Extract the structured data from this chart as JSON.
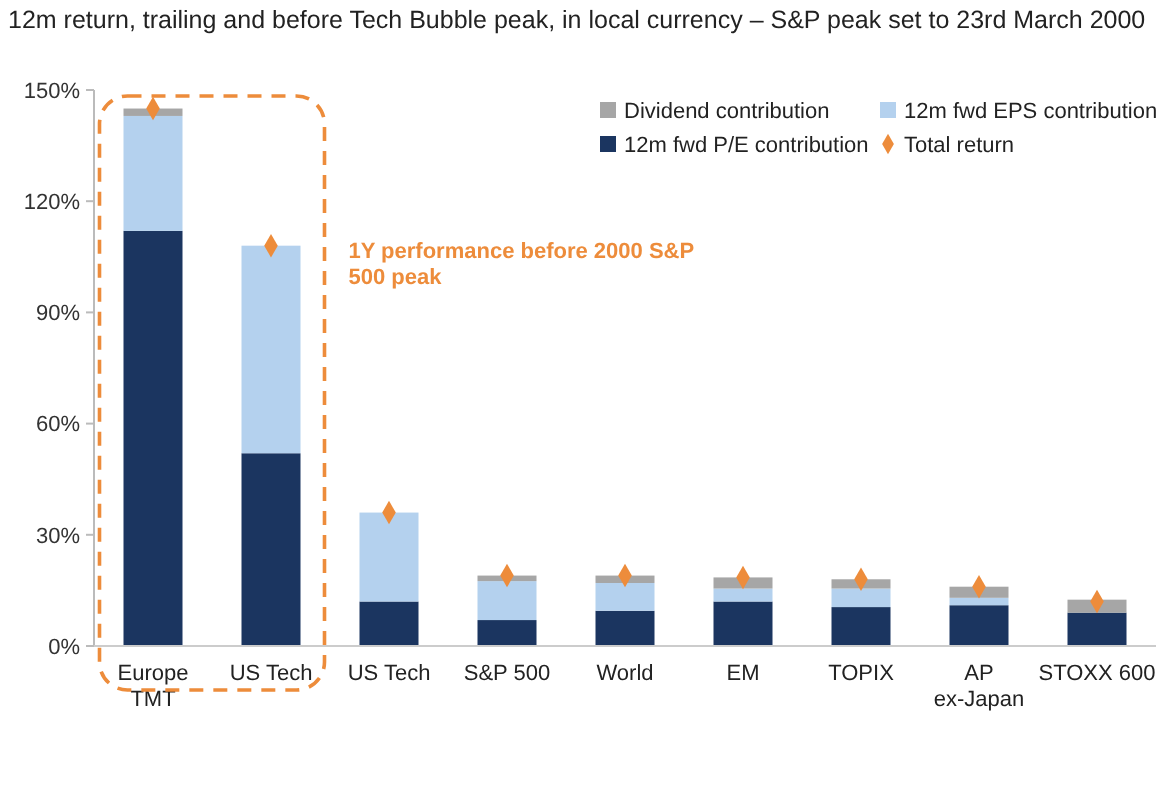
{
  "chart_data": {
    "type": "bar",
    "stacked": true,
    "title": "12m return, trailing and before Tech Bubble peak, in local currency – S&P peak set to 23rd March 2000",
    "categories": [
      "Europe TMT",
      "US Tech",
      "US Tech",
      "S&P 500",
      "World",
      "EM",
      "TOPIX",
      "AP ex-Japan",
      "STOXX 600"
    ],
    "series": [
      {
        "name": "12m fwd P/E contribution",
        "color": "#1b3560",
        "values": [
          112,
          52,
          12,
          7,
          9.5,
          12,
          10.5,
          11,
          9
        ]
      },
      {
        "name": "12m fwd EPS contribution",
        "color": "#b4d1ee",
        "values": [
          31,
          56,
          24,
          10.5,
          7.5,
          3.5,
          5,
          2,
          0
        ]
      },
      {
        "name": "Dividend contribution",
        "color": "#a6a6a6",
        "values": [
          2,
          0,
          0,
          1.5,
          2,
          3,
          2.5,
          3,
          3.5
        ]
      },
      {
        "name": "Total return",
        "type": "scatter",
        "marker": "diamond",
        "color": "#ed8c3b",
        "values": [
          145,
          108,
          36,
          19,
          19,
          18.5,
          18,
          16,
          12
        ]
      }
    ],
    "ylim": [
      0,
      150
    ],
    "yticks": [
      {
        "value": 0,
        "label": "0%"
      },
      {
        "value": 30,
        "label": "30%"
      },
      {
        "value": 60,
        "label": "60%"
      },
      {
        "value": 90,
        "label": "90%"
      },
      {
        "value": 120,
        "label": "120%"
      },
      {
        "value": 150,
        "label": "150%"
      }
    ],
    "grid": false,
    "legend": "top right",
    "annotations": [
      "1Y performance before 2000 S&P 500 peak"
    ]
  }
}
